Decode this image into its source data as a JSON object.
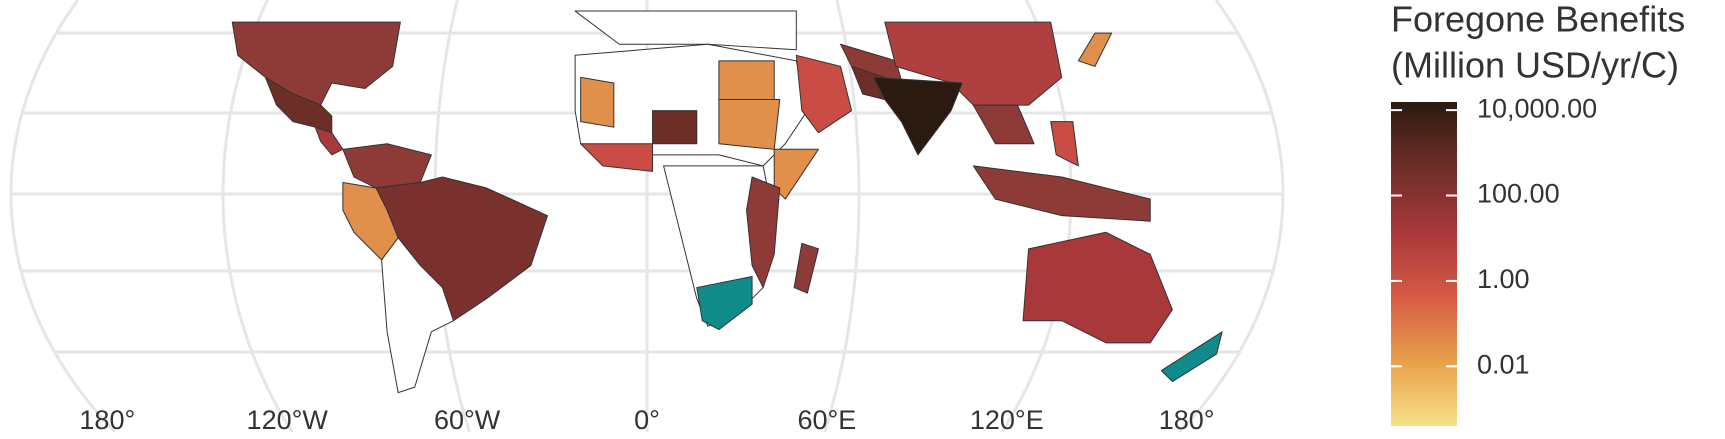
{
  "legend": {
    "title": [
      "Foregone Benefits",
      "(Million USD/yr/C)"
    ],
    "scale": "log",
    "lim": [
      0.0004,
      15500
    ],
    "colors": [
      "#f7e08a",
      "#e8a04a",
      "#d65a45",
      "#a8383a",
      "#6e2e28",
      "#2b1a10"
    ],
    "ticks": [
      {
        "value": 0.01,
        "label": "0.01"
      },
      {
        "value": 1,
        "label": "1.00"
      },
      {
        "value": 100,
        "label": "100.00"
      },
      {
        "value": 10000,
        "label": "10,000.00"
      }
    ]
  },
  "longitudes": [
    {
      "value": -180,
      "label": "180°"
    },
    {
      "value": -120,
      "label": "120°W"
    },
    {
      "value": -60,
      "label": "60°W"
    },
    {
      "value": 0,
      "label": "0°"
    },
    {
      "value": 60,
      "label": "60°E"
    },
    {
      "value": 120,
      "label": "120°E"
    },
    {
      "value": 180,
      "label": "180°"
    }
  ]
}
